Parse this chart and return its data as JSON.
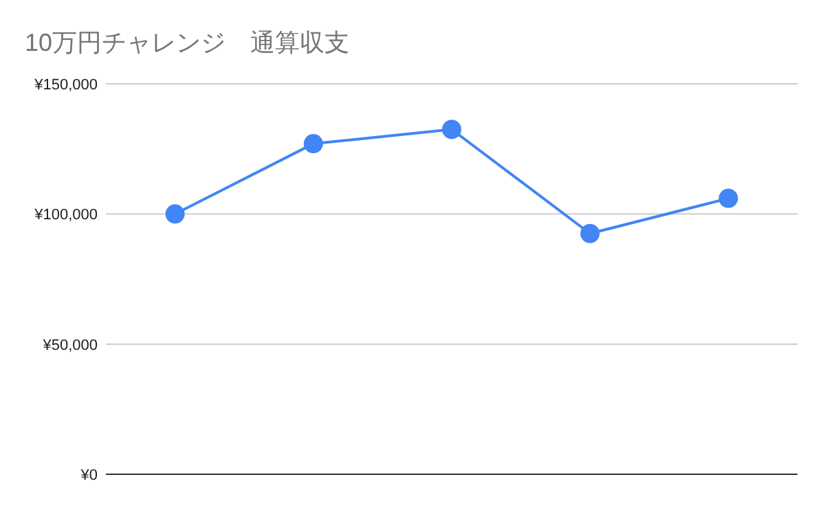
{
  "chart_data": {
    "type": "line",
    "title": "10万円チャレンジ　通算収支",
    "categories": [
      null,
      null,
      null,
      null,
      null
    ],
    "series": [
      {
        "color": "#4285f4",
        "values": [
          100000,
          127000,
          132500,
          92500,
          106000
        ]
      }
    ],
    "ylim": [
      0,
      150000
    ],
    "yticks": [
      {
        "value": 0,
        "label": "¥0"
      },
      {
        "value": 50000,
        "label": "¥50,000"
      },
      {
        "value": 100000,
        "label": "¥100,000"
      },
      {
        "value": 150000,
        "label": "¥150,000"
      }
    ],
    "grid": "y",
    "marker": "circle",
    "tick_labels": "y"
  }
}
